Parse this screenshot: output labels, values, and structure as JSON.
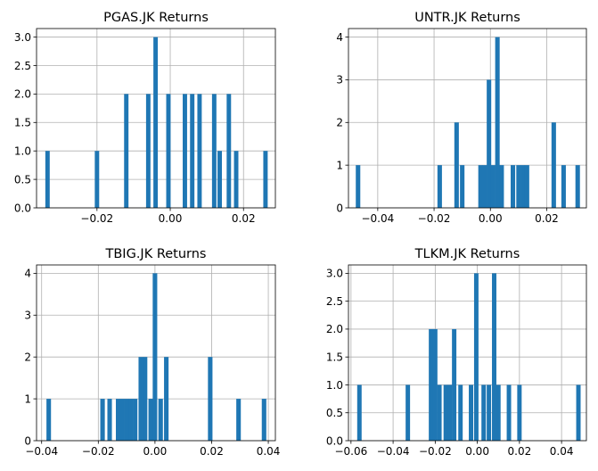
{
  "chart_data": [
    {
      "type": "bar",
      "title": "PGAS.JK Returns",
      "xlim": [
        -0.0365,
        0.0287
      ],
      "ylim": [
        0,
        3.15
      ],
      "xticks": [
        -0.02,
        0.0,
        0.02
      ],
      "xtick_labels": [
        "−0.02",
        "0.00",
        "0.02"
      ],
      "yticks": [
        0,
        0.5,
        1,
        1.5,
        2,
        2.5,
        3
      ],
      "ytick_labels": [
        "0.0",
        "0.5",
        "1.0",
        "1.5",
        "2.0",
        "2.5",
        "3.0"
      ],
      "bin_width": 0.0012,
      "bins": [
        {
          "x": -0.0335,
          "count": 1
        },
        {
          "x": -0.02,
          "count": 1
        },
        {
          "x": -0.012,
          "count": 2
        },
        {
          "x": -0.006,
          "count": 2
        },
        {
          "x": -0.004,
          "count": 3
        },
        {
          "x": -0.0005,
          "count": 2
        },
        {
          "x": 0.004,
          "count": 2
        },
        {
          "x": 0.006,
          "count": 2
        },
        {
          "x": 0.008,
          "count": 2
        },
        {
          "x": 0.012,
          "count": 2
        },
        {
          "x": 0.0135,
          "count": 1
        },
        {
          "x": 0.016,
          "count": 2
        },
        {
          "x": 0.018,
          "count": 1
        },
        {
          "x": 0.026,
          "count": 1
        }
      ]
    },
    {
      "type": "bar",
      "title": "UNTR.JK Returns",
      "xlim": [
        -0.0504,
        0.0341
      ],
      "ylim": [
        0,
        4.2
      ],
      "xticks": [
        -0.04,
        -0.02,
        0.0,
        0.02
      ],
      "xtick_labels": [
        "−0.04",
        "−0.02",
        "0.00",
        "0.02"
      ],
      "yticks": [
        0,
        1,
        2,
        3,
        4
      ],
      "ytick_labels": [
        "0",
        "1",
        "2",
        "3",
        "4"
      ],
      "bin_width": 0.0016,
      "bins": [
        {
          "x": -0.047,
          "count": 1
        },
        {
          "x": -0.018,
          "count": 1
        },
        {
          "x": -0.012,
          "count": 2
        },
        {
          "x": -0.01,
          "count": 1
        },
        {
          "x": -0.0035,
          "count": 1
        },
        {
          "x": -0.002,
          "count": 1
        },
        {
          "x": -0.0005,
          "count": 3
        },
        {
          "x": 0.001,
          "count": 1
        },
        {
          "x": 0.0025,
          "count": 4
        },
        {
          "x": 0.004,
          "count": 1
        },
        {
          "x": 0.008,
          "count": 1
        },
        {
          "x": 0.01,
          "count": 1
        },
        {
          "x": 0.0115,
          "count": 1
        },
        {
          "x": 0.013,
          "count": 1
        },
        {
          "x": 0.0225,
          "count": 2
        },
        {
          "x": 0.026,
          "count": 1
        },
        {
          "x": 0.031,
          "count": 1
        }
      ]
    },
    {
      "type": "bar",
      "title": "TBIG.JK Returns",
      "xlim": [
        -0.0418,
        0.0425
      ],
      "ylim": [
        0,
        4.2
      ],
      "xticks": [
        -0.04,
        -0.02,
        0.0,
        0.02,
        0.04
      ],
      "xtick_labels": [
        "−0.04",
        "−0.02",
        "0.00",
        "0.02",
        "0.04"
      ],
      "yticks": [
        0,
        1,
        2,
        3,
        4
      ],
      "ytick_labels": [
        "0",
        "1",
        "2",
        "3",
        "4"
      ],
      "bin_width": 0.0016,
      "bins": [
        {
          "x": -0.0375,
          "count": 1
        },
        {
          "x": -0.0185,
          "count": 1
        },
        {
          "x": -0.016,
          "count": 1
        },
        {
          "x": -0.013,
          "count": 1
        },
        {
          "x": -0.0115,
          "count": 1
        },
        {
          "x": -0.01,
          "count": 1
        },
        {
          "x": -0.0085,
          "count": 1
        },
        {
          "x": -0.007,
          "count": 1
        },
        {
          "x": -0.005,
          "count": 2
        },
        {
          "x": -0.0035,
          "count": 2
        },
        {
          "x": -0.0015,
          "count": 1
        },
        {
          "x": 0.0,
          "count": 4
        },
        {
          "x": 0.002,
          "count": 1
        },
        {
          "x": 0.004,
          "count": 2
        },
        {
          "x": 0.0195,
          "count": 2
        },
        {
          "x": 0.0295,
          "count": 1
        },
        {
          "x": 0.0385,
          "count": 1
        }
      ]
    },
    {
      "type": "bar",
      "title": "TLKM.JK Returns",
      "xlim": [
        -0.0612,
        0.0518
      ],
      "ylim": [
        0,
        3.15
      ],
      "xticks": [
        -0.06,
        -0.04,
        -0.02,
        0.0,
        0.02,
        0.04
      ],
      "xtick_labels": [
        "−0.06",
        "−0.04",
        "−0.02",
        "0.00",
        "0.02",
        "0.04"
      ],
      "yticks": [
        0,
        0.5,
        1,
        1.5,
        2,
        2.5,
        3
      ],
      "ytick_labels": [
        "0.0",
        "0.5",
        "1.0",
        "1.5",
        "2.0",
        "2.5",
        "3.0"
      ],
      "bin_width": 0.0021,
      "bins": [
        {
          "x": -0.056,
          "count": 1
        },
        {
          "x": -0.033,
          "count": 1
        },
        {
          "x": -0.022,
          "count": 2
        },
        {
          "x": -0.02,
          "count": 2
        },
        {
          "x": -0.018,
          "count": 1
        },
        {
          "x": -0.015,
          "count": 1
        },
        {
          "x": -0.013,
          "count": 1
        },
        {
          "x": -0.011,
          "count": 2
        },
        {
          "x": -0.008,
          "count": 1
        },
        {
          "x": -0.003,
          "count": 1
        },
        {
          "x": -0.0005,
          "count": 3
        },
        {
          "x": 0.003,
          "count": 1
        },
        {
          "x": 0.0055,
          "count": 1
        },
        {
          "x": 0.008,
          "count": 3
        },
        {
          "x": 0.01,
          "count": 1
        },
        {
          "x": 0.015,
          "count": 1
        },
        {
          "x": 0.02,
          "count": 1
        },
        {
          "x": 0.048,
          "count": 1
        }
      ]
    }
  ]
}
